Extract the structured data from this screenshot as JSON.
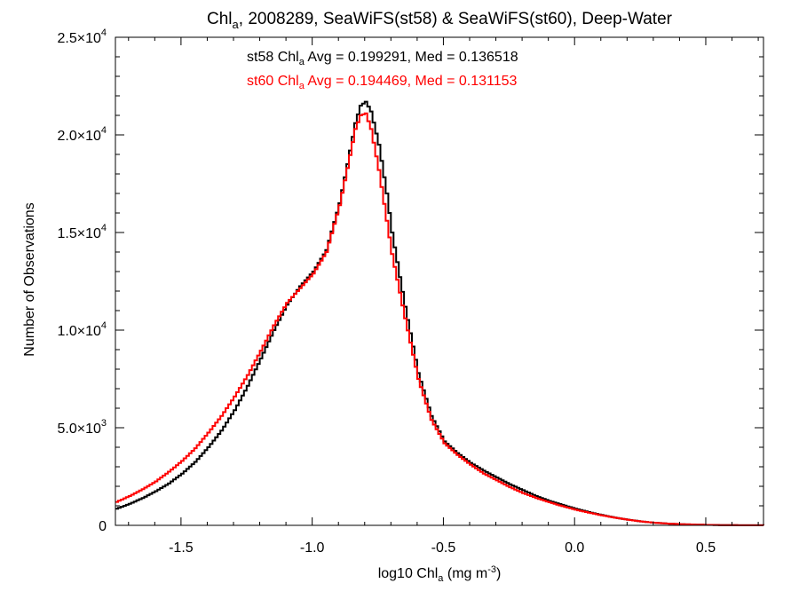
{
  "chart_data": {
    "type": "line",
    "line_style": "step",
    "title": {
      "prefix": "Chl",
      "prefix_sub": "a",
      "rest": ", 2008289, SeaWiFS(st58) & SeaWiFS(st60), Deep-Water"
    },
    "xlabel": {
      "prefix": "log10 Chl",
      "prefix_sub": "a",
      "mid": " (mg m",
      "sup": "-3",
      "suffix": ")"
    },
    "ylabel": "Number of Observations",
    "xlim": [
      -1.75,
      0.72
    ],
    "ylim": [
      0,
      25000
    ],
    "x_ticks": [
      {
        "value": -1.5,
        "label": "-1.5"
      },
      {
        "value": -1.0,
        "label": "-1.0"
      },
      {
        "value": -0.5,
        "label": "-0.5"
      },
      {
        "value": 0.0,
        "label": "0.0"
      },
      {
        "value": 0.5,
        "label": "0.5"
      }
    ],
    "y_ticks": [
      {
        "value": 0,
        "mantissa": "0",
        "exponent": ""
      },
      {
        "value": 5000,
        "mantissa": "5.0×10",
        "exponent": "3"
      },
      {
        "value": 10000,
        "mantissa": "1.0×10",
        "exponent": "4"
      },
      {
        "value": 15000,
        "mantissa": "1.5×10",
        "exponent": "4"
      },
      {
        "value": 20000,
        "mantissa": "2.0×10",
        "exponent": "4"
      },
      {
        "value": 25000,
        "mantissa": "2.5×10",
        "exponent": "4"
      }
    ],
    "annotations": [
      {
        "prefix": "st58 Chl",
        "sub": "a",
        "rest": " Avg = 0.199291, Med = 0.136518",
        "color": "#000000"
      },
      {
        "prefix": "st60 Chl",
        "sub": "a",
        "rest": " Avg = 0.194469, Med = 0.131153",
        "color": "#ff0000"
      }
    ],
    "series": [
      {
        "color": "#000000",
        "points": [
          [
            -1.75,
            850
          ],
          [
            -1.7,
            1100
          ],
          [
            -1.65,
            1400
          ],
          [
            -1.6,
            1750
          ],
          [
            -1.55,
            2150
          ],
          [
            -1.5,
            2650
          ],
          [
            -1.45,
            3250
          ],
          [
            -1.4,
            4000
          ],
          [
            -1.35,
            4850
          ],
          [
            -1.3,
            5900
          ],
          [
            -1.25,
            7150
          ],
          [
            -1.2,
            8550
          ],
          [
            -1.15,
            10000
          ],
          [
            -1.1,
            11300
          ],
          [
            -1.05,
            12250
          ],
          [
            -1.0,
            13000
          ],
          [
            -0.95,
            14100
          ],
          [
            -0.9,
            16500
          ],
          [
            -0.87,
            18500
          ],
          [
            -0.84,
            20600
          ],
          [
            -0.82,
            21500
          ],
          [
            -0.8,
            21700
          ],
          [
            -0.78,
            21200
          ],
          [
            -0.75,
            19500
          ],
          [
            -0.72,
            17000
          ],
          [
            -0.7,
            15000
          ],
          [
            -0.65,
            11200
          ],
          [
            -0.6,
            7800
          ],
          [
            -0.55,
            5600
          ],
          [
            -0.5,
            4300
          ],
          [
            -0.45,
            3700
          ],
          [
            -0.4,
            3200
          ],
          [
            -0.35,
            2800
          ],
          [
            -0.3,
            2450
          ],
          [
            -0.25,
            2100
          ],
          [
            -0.2,
            1800
          ],
          [
            -0.15,
            1500
          ],
          [
            -0.1,
            1250
          ],
          [
            -0.05,
            1050
          ],
          [
            0.0,
            850
          ],
          [
            0.05,
            680
          ],
          [
            0.1,
            530
          ],
          [
            0.15,
            400
          ],
          [
            0.2,
            290
          ],
          [
            0.25,
            200
          ],
          [
            0.3,
            135
          ],
          [
            0.35,
            90
          ],
          [
            0.4,
            60
          ],
          [
            0.45,
            40
          ],
          [
            0.5,
            25
          ],
          [
            0.55,
            15
          ],
          [
            0.6,
            8
          ],
          [
            0.65,
            4
          ],
          [
            0.72,
            2
          ]
        ]
      },
      {
        "color": "#ff0000",
        "points": [
          [
            -1.75,
            1200
          ],
          [
            -1.7,
            1500
          ],
          [
            -1.65,
            1850
          ],
          [
            -1.6,
            2250
          ],
          [
            -1.55,
            2750
          ],
          [
            -1.5,
            3300
          ],
          [
            -1.45,
            3950
          ],
          [
            -1.4,
            4750
          ],
          [
            -1.35,
            5600
          ],
          [
            -1.3,
            6600
          ],
          [
            -1.25,
            7700
          ],
          [
            -1.2,
            8950
          ],
          [
            -1.15,
            10250
          ],
          [
            -1.1,
            11400
          ],
          [
            -1.05,
            12150
          ],
          [
            -1.0,
            12900
          ],
          [
            -0.95,
            14000
          ],
          [
            -0.9,
            16400
          ],
          [
            -0.87,
            18300
          ],
          [
            -0.84,
            20300
          ],
          [
            -0.82,
            21000
          ],
          [
            -0.8,
            21100
          ],
          [
            -0.78,
            20300
          ],
          [
            -0.75,
            18200
          ],
          [
            -0.72,
            15600
          ],
          [
            -0.7,
            13900
          ],
          [
            -0.65,
            10600
          ],
          [
            -0.6,
            7500
          ],
          [
            -0.55,
            5400
          ],
          [
            -0.5,
            4200
          ],
          [
            -0.45,
            3600
          ],
          [
            -0.4,
            3100
          ],
          [
            -0.35,
            2650
          ],
          [
            -0.3,
            2300
          ],
          [
            -0.25,
            1950
          ],
          [
            -0.2,
            1650
          ],
          [
            -0.15,
            1400
          ],
          [
            -0.1,
            1180
          ],
          [
            -0.05,
            980
          ],
          [
            0.0,
            800
          ],
          [
            0.05,
            650
          ],
          [
            0.1,
            510
          ],
          [
            0.15,
            390
          ],
          [
            0.2,
            285
          ],
          [
            0.25,
            200
          ],
          [
            0.3,
            135
          ],
          [
            0.35,
            90
          ],
          [
            0.4,
            60
          ],
          [
            0.45,
            40
          ],
          [
            0.5,
            25
          ],
          [
            0.55,
            15
          ],
          [
            0.6,
            8
          ],
          [
            0.65,
            4
          ],
          [
            0.72,
            2
          ]
        ]
      }
    ]
  }
}
